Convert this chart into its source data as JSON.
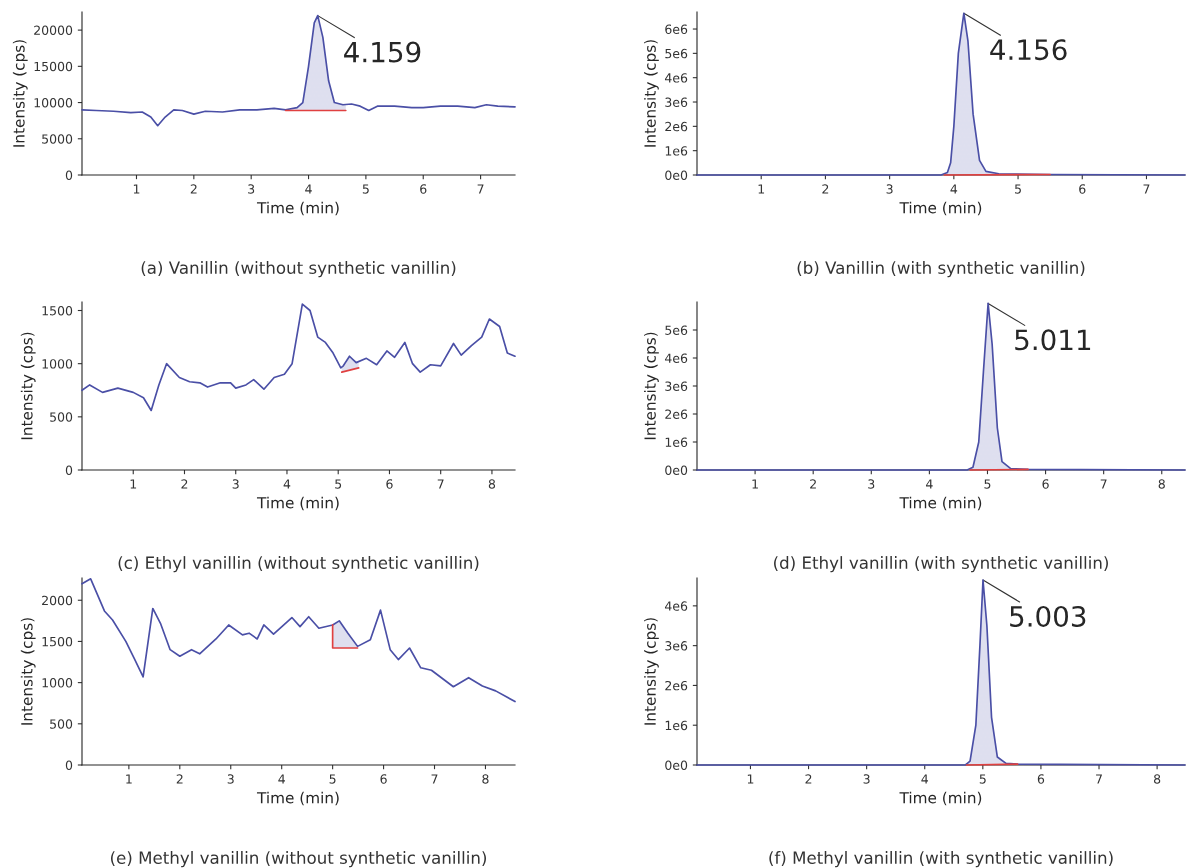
{
  "chart_data": [
    {
      "type": "line",
      "title": "(a) Vanillin (without synthetic vanillin)",
      "xlabel": "Time (min)",
      "ylabel": "Intensity (cps)",
      "xlim": [
        0.05,
        7.6
      ],
      "xticks": [
        1,
        2,
        3,
        4,
        5,
        6,
        7
      ],
      "ylim": [
        0,
        22500
      ],
      "yticks": [
        0,
        5000,
        10000,
        15000,
        20000
      ],
      "series": [
        {
          "color": "#4a4fa6",
          "x": [
            0.05,
            0.3,
            0.6,
            0.9,
            1.1,
            1.25,
            1.37,
            1.5,
            1.65,
            1.8,
            2.0,
            2.2,
            2.5,
            2.8,
            3.1,
            3.4,
            3.6,
            3.8,
            3.9,
            4.0,
            4.1,
            4.16,
            4.25,
            4.35,
            4.45,
            4.6,
            4.75,
            4.9,
            5.05,
            5.2,
            5.5,
            5.8,
            6.0,
            6.3,
            6.6,
            6.9,
            7.1,
            7.3,
            7.6
          ],
          "values": [
            9000,
            8900,
            8800,
            8600,
            8700,
            8000,
            6800,
            8000,
            9000,
            8900,
            8400,
            8800,
            8700,
            9000,
            9000,
            9200,
            9000,
            9300,
            10000,
            15000,
            21000,
            22000,
            19000,
            13000,
            10000,
            9700,
            9800,
            9500,
            8900,
            9500,
            9500,
            9300,
            9300,
            9500,
            9500,
            9300,
            9700,
            9500,
            9400
          ]
        },
        {
          "type": "area",
          "color": "#4a4fa6",
          "x": [
            3.6,
            3.8,
            3.9,
            4.0,
            4.1,
            4.16,
            4.25,
            4.35,
            4.45,
            4.6,
            4.65
          ],
          "values": [
            9000,
            9300,
            10000,
            15000,
            21000,
            22000,
            19000,
            13000,
            10000,
            9700,
            9700
          ]
        },
        {
          "type": "line",
          "color": "#e04040",
          "x": [
            3.6,
            4.65
          ],
          "values": [
            8900,
            8900
          ]
        }
      ],
      "annotations": [
        {
          "text": "4.159",
          "x": 4.16,
          "y": 22000
        }
      ]
    },
    {
      "type": "line",
      "title": "(b) Vanillin (with synthetic vanillin)",
      "xlabel": "Time (min)",
      "ylabel": "Intensity (cps)",
      "xlim": [
        0,
        7.6
      ],
      "xticks": [
        1,
        2,
        3,
        4,
        5,
        6,
        7
      ],
      "ylim": [
        0,
        6700000
      ],
      "yticks": [
        {
          "value": 0,
          "label": "0e0"
        },
        {
          "value": 1000000,
          "label": "1e6"
        },
        {
          "value": 2000000,
          "label": "2e6"
        },
        {
          "value": 3000000,
          "label": "3e6"
        },
        {
          "value": 4000000,
          "label": "4e6"
        },
        {
          "value": 5000000,
          "label": "5e6"
        },
        {
          "value": 6000000,
          "label": "6e6"
        }
      ],
      "series": [
        {
          "color": "#4a4fa6",
          "x": [
            0,
            3.8,
            3.9,
            3.95,
            4.0,
            4.07,
            4.156,
            4.22,
            4.3,
            4.4,
            4.5,
            4.7,
            5.5,
            7.6
          ],
          "values": [
            0,
            0,
            100000,
            500000,
            2000000,
            5000000,
            6650000,
            5500000,
            2500000,
            600000,
            150000,
            50000,
            20000,
            0
          ]
        },
        {
          "type": "area",
          "color": "#4a4fa6",
          "x": [
            3.85,
            3.9,
            3.95,
            4.0,
            4.07,
            4.156,
            4.22,
            4.3,
            4.4,
            4.5,
            4.7
          ],
          "values": [
            0,
            100000,
            500000,
            2000000,
            5000000,
            6650000,
            5500000,
            2500000,
            600000,
            150000,
            50000
          ]
        },
        {
          "type": "line",
          "color": "#e04040",
          "x": [
            3.85,
            5.5
          ],
          "values": [
            0,
            20000
          ]
        }
      ],
      "annotations": [
        {
          "text": "4.156",
          "x": 4.156,
          "y": 6650000
        }
      ]
    },
    {
      "type": "line",
      "title": "(c) Ethyl vanillin (without synthetic vanillin)",
      "xlabel": "Time (min)",
      "ylabel": "Intensity (cps)",
      "xlim": [
        0,
        8.45
      ],
      "xticks": [
        1,
        2,
        3,
        4,
        5,
        6,
        7,
        8
      ],
      "ylim": [
        0,
        1580
      ],
      "yticks": [
        0,
        500,
        1000,
        1500
      ],
      "series": [
        {
          "color": "#4a4fa6",
          "x": [
            0,
            0.15,
            0.4,
            0.7,
            1.0,
            1.2,
            1.35,
            1.5,
            1.65,
            1.9,
            2.1,
            2.3,
            2.45,
            2.7,
            2.9,
            3.0,
            3.2,
            3.35,
            3.55,
            3.75,
            3.95,
            4.1,
            4.3,
            4.45,
            4.6,
            4.75,
            4.9,
            5.05,
            5.1,
            5.22,
            5.35,
            5.55,
            5.75,
            5.95,
            6.1,
            6.3,
            6.45,
            6.6,
            6.8,
            7.0,
            7.25,
            7.4,
            7.6,
            7.8,
            7.95,
            8.15,
            8.3,
            8.45
          ],
          "values": [
            750,
            800,
            730,
            770,
            730,
            680,
            560,
            800,
            1000,
            870,
            830,
            820,
            780,
            820,
            820,
            770,
            800,
            850,
            760,
            870,
            900,
            1000,
            1560,
            1500,
            1250,
            1200,
            1100,
            960,
            980,
            1070,
            1010,
            1050,
            990,
            1120,
            1060,
            1200,
            1000,
            920,
            990,
            980,
            1190,
            1080,
            1170,
            1250,
            1420,
            1350,
            1100,
            1070
          ]
        },
        {
          "type": "area",
          "color": "#4a4fa6",
          "x": [
            5.07,
            5.15,
            5.22,
            5.3,
            5.4
          ],
          "values": [
            960,
            1000,
            1070,
            1040,
            1010
          ]
        },
        {
          "type": "line",
          "color": "#e04040",
          "x": [
            5.07,
            5.4
          ],
          "values": [
            920,
            960
          ]
        }
      ]
    },
    {
      "type": "line",
      "title": "(d) Ethyl vanillin (with synthetic vanillin)",
      "xlabel": "Time (min)",
      "ylabel": "Intensity (cps)",
      "xlim": [
        0,
        8.4
      ],
      "xticks": [
        1,
        2,
        3,
        4,
        5,
        6,
        7,
        8
      ],
      "ylim": [
        0,
        6000000
      ],
      "yticks": [
        {
          "value": 0,
          "label": "0e0"
        },
        {
          "value": 1000000,
          "label": "1e6"
        },
        {
          "value": 2000000,
          "label": "2e6"
        },
        {
          "value": 3000000,
          "label": "3e6"
        },
        {
          "value": 4000000,
          "label": "4e6"
        },
        {
          "value": 5000000,
          "label": "5e6"
        }
      ],
      "series": [
        {
          "color": "#4a4fa6",
          "x": [
            0,
            4.65,
            4.75,
            4.85,
            4.93,
            5.011,
            5.08,
            5.17,
            5.25,
            5.4,
            5.7,
            8.4
          ],
          "values": [
            0,
            0,
            100000,
            1000000,
            3500000,
            5950000,
            4500000,
            1500000,
            300000,
            50000,
            20000,
            0
          ]
        },
        {
          "type": "area",
          "color": "#4a4fa6",
          "x": [
            4.7,
            4.75,
            4.85,
            4.93,
            5.011,
            5.08,
            5.17,
            5.25,
            5.4
          ],
          "values": [
            0,
            100000,
            1000000,
            3500000,
            5950000,
            4500000,
            1500000,
            300000,
            50000
          ]
        },
        {
          "type": "line",
          "color": "#e04040",
          "x": [
            4.7,
            5.7
          ],
          "values": [
            0,
            20000
          ]
        }
      ],
      "annotations": [
        {
          "text": "5.011",
          "x": 5.011,
          "y": 5950000
        }
      ]
    },
    {
      "type": "line",
      "title": "(e) Methyl vanillin (without synthetic vanillin)",
      "xlabel": "Time (min)",
      "ylabel": "Intensity (cps)",
      "xlim": [
        0.08,
        8.58
      ],
      "xticks": [
        1,
        2,
        3,
        4,
        5,
        6,
        7,
        8
      ],
      "ylim": [
        0,
        2270
      ],
      "yticks": [
        0,
        500,
        1000,
        1500,
        2000
      ],
      "series": [
        {
          "color": "#4a4fa6",
          "x": [
            0.08,
            0.25,
            0.52,
            0.68,
            0.94,
            1.1,
            1.28,
            1.47,
            1.62,
            1.81,
            2.0,
            2.23,
            2.39,
            2.71,
            2.96,
            3.23,
            3.36,
            3.52,
            3.65,
            3.84,
            4.2,
            4.36,
            4.53,
            4.73,
            5.0,
            5.13,
            5.3,
            5.49,
            5.74,
            5.94,
            6.13,
            6.29,
            6.51,
            6.73,
            6.94,
            7.37,
            7.67,
            7.94,
            8.2,
            8.58
          ],
          "values": [
            2200,
            2260,
            1870,
            1760,
            1500,
            1300,
            1070,
            1900,
            1720,
            1400,
            1320,
            1400,
            1350,
            1530,
            1700,
            1580,
            1600,
            1530,
            1700,
            1590,
            1790,
            1680,
            1800,
            1660,
            1700,
            1750,
            1600,
            1440,
            1520,
            1880,
            1400,
            1280,
            1420,
            1180,
            1150,
            950,
            1060,
            960,
            900,
            770
          ]
        },
        {
          "type": "area",
          "color": "#4a4fa6",
          "x": [
            5.0,
            5.13,
            5.3,
            5.49
          ],
          "values": [
            1700,
            1750,
            1600,
            1440
          ]
        },
        {
          "type": "line",
          "color": "#e04040",
          "x": [
            5.0,
            5.0,
            5.49
          ],
          "values": [
            1700,
            1420,
            1420
          ]
        }
      ]
    },
    {
      "type": "line",
      "title": "(f) Methyl vanillin (with synthetic vanillin)",
      "xlabel": "Time (min)",
      "ylabel": "Intensity (cps)",
      "xlim": [
        0.08,
        8.48
      ],
      "xticks": [
        1,
        2,
        3,
        4,
        5,
        6,
        7,
        8
      ],
      "ylim": [
        0,
        4700000
      ],
      "yticks": [
        {
          "value": 0,
          "label": "0e0"
        },
        {
          "value": 1000000,
          "label": "1e6"
        },
        {
          "value": 2000000,
          "label": "2e6"
        },
        {
          "value": 3000000,
          "label": "3e6"
        },
        {
          "value": 4000000,
          "label": "4e6"
        }
      ],
      "series": [
        {
          "color": "#4a4fa6",
          "x": [
            0.08,
            4.7,
            4.78,
            4.88,
            4.95,
            5.003,
            5.07,
            5.15,
            5.25,
            5.4,
            5.6,
            8.48
          ],
          "values": [
            0,
            0,
            100000,
            1000000,
            3000000,
            4650000,
            3500000,
            1200000,
            200000,
            40000,
            20000,
            0
          ]
        },
        {
          "type": "area",
          "color": "#4a4fa6",
          "x": [
            4.72,
            4.78,
            4.88,
            4.95,
            5.003,
            5.07,
            5.15,
            5.25,
            5.4
          ],
          "values": [
            0,
            100000,
            1000000,
            3000000,
            4650000,
            3500000,
            1200000,
            200000,
            40000
          ]
        },
        {
          "type": "line",
          "color": "#e04040",
          "x": [
            4.72,
            5.6
          ],
          "values": [
            0,
            20000
          ]
        }
      ],
      "annotations": [
        {
          "text": "5.003",
          "x": 5.003,
          "y": 4650000
        }
      ]
    }
  ]
}
